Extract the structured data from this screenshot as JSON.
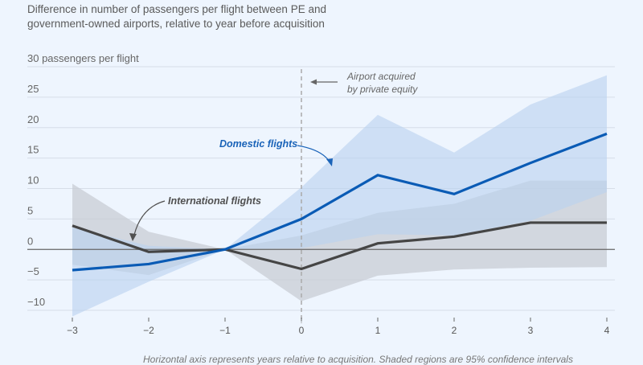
{
  "chart_data": {
    "type": "line",
    "title": "Difference in number of passengers per flight between PE and government-owned airports, relative to year before acquisition",
    "ylabel": "passengers per flight",
    "xlabel": "",
    "footnote": "Horizontal axis represents years relative to acquisition. Shaded regions are 95% confidence intervals",
    "x": [
      -3,
      -2,
      -1,
      0,
      1,
      2,
      3,
      4
    ],
    "xlim": [
      -3,
      4
    ],
    "ylim": [
      -10,
      30
    ],
    "x_ticks": [
      "−3",
      "−2",
      "−1",
      "0",
      "1",
      "2",
      "3",
      "4"
    ],
    "y_ticks": [
      {
        "value": 30,
        "label": "30 passengers per flight"
      },
      {
        "value": 25,
        "label": "25"
      },
      {
        "value": 20,
        "label": "20"
      },
      {
        "value": 15,
        "label": "15"
      },
      {
        "value": 10,
        "label": "10"
      },
      {
        "value": 5,
        "label": "5"
      },
      {
        "value": 0,
        "label": "0"
      },
      {
        "value": -5,
        "label": "−5"
      },
      {
        "value": -10,
        "label": "−10"
      }
    ],
    "grid": true,
    "series": [
      {
        "name": "Domestic flights",
        "color": "#0a5bb5",
        "band_color": "#b9d2ef",
        "values": [
          -3.4,
          -2.4,
          0,
          5.0,
          12.2,
          9.1,
          14.2,
          19.0
        ],
        "ci_upper": [
          3.6,
          0.6,
          0,
          10.2,
          22.1,
          15.9,
          23.8,
          28.6
        ],
        "ci_lower": [
          -11.0,
          -5.3,
          0,
          0.2,
          2.5,
          2.3,
          4.7,
          9.4
        ]
      },
      {
        "name": "International flights",
        "color": "#454545",
        "band_color": "#c8ccd4",
        "values": [
          3.9,
          -0.4,
          0,
          -3.2,
          1.0,
          2.1,
          4.4,
          4.4
        ],
        "ci_upper": [
          10.8,
          2.9,
          0,
          2.3,
          6.0,
          7.5,
          11.3,
          11.3
        ],
        "ci_lower": [
          -2.5,
          -4.2,
          0,
          -8.5,
          -4.3,
          -3.3,
          -3.0,
          -2.9
        ]
      }
    ],
    "annotations": [
      {
        "text_lines": [
          "Airport acquired",
          "by private equity"
        ],
        "at_x": 0,
        "kind": "vertical-dashed-line"
      },
      {
        "text": "Domestic flights",
        "series": "Domestic flights"
      },
      {
        "text": "International flights",
        "series": "International flights"
      }
    ]
  }
}
